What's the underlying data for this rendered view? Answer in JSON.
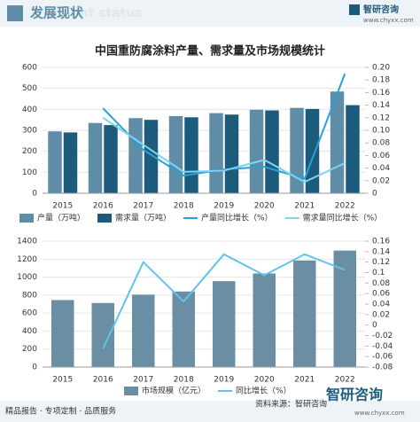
{
  "header": {
    "title": "发展现状",
    "watermark": "ent status",
    "logo": "智研咨询",
    "url": "www.chyxx.com"
  },
  "title": "中国重防腐涂料产量、需求量及市场规模统计",
  "chart_data": [
    {
      "type": "bar",
      "categories": [
        "2015",
        "2016",
        "2017",
        "2018",
        "2019",
        "2020",
        "2021",
        "2022"
      ],
      "ylim": [
        0,
        600
      ],
      "yticks": [
        0,
        100,
        200,
        300,
        400,
        500,
        600
      ],
      "y2lim": [
        0,
        0.2
      ],
      "y2ticks": [
        0,
        0.02,
        0.04,
        0.06,
        0.08,
        {
          "value": 0.1,
          "label": "0.10"
        },
        0.12,
        0.14,
        0.16,
        0.18,
        {
          "value": 0.2,
          "label": "0.20"
        }
      ],
      "series": [
        {
          "name": "产量（万吨）",
          "color": "#5f8ca6",
          "values": [
            295,
            335,
            358,
            368,
            382,
            398,
            407,
            485
          ]
        },
        {
          "name": "需求量（万吨）",
          "color": "#1d5b7c",
          "values": [
            290,
            325,
            350,
            362,
            375,
            395,
            402,
            420
          ]
        },
        {
          "name": "产量同比增长（%）",
          "type": "line",
          "axis": "y2",
          "color": "#2a9fd8",
          "values": [
            null,
            0.135,
            0.069,
            0.028,
            0.038,
            0.042,
            0.023,
            0.19
          ]
        },
        {
          "name": "需求量同比增长（%）",
          "type": "line",
          "axis": "y2",
          "color": "#7fd4f1",
          "values": [
            null,
            0.12,
            0.077,
            0.034,
            0.036,
            0.053,
            0.018,
            0.048
          ]
        }
      ]
    },
    {
      "type": "bar",
      "categories": [
        "2015",
        "2016",
        "2017",
        "2018",
        "2019",
        "2020",
        "2021",
        "2022"
      ],
      "ylim": [
        0,
        1400
      ],
      "yticks": [
        0,
        200,
        400,
        600,
        800,
        1000,
        1200,
        1400
      ],
      "y2lim": [
        -0.08,
        0.16
      ],
      "y2ticks": [
        -0.08,
        -0.06,
        -0.04,
        -0.02,
        0,
        0.02,
        0.04,
        0.06,
        0.08,
        0.1,
        0.12,
        0.14,
        0.16
      ],
      "series": [
        {
          "name": "市场规模（亿元）",
          "color": "#6a8ea3",
          "values": [
            745,
            712,
            805,
            840,
            955,
            1040,
            1185,
            1295
          ]
        },
        {
          "name": "同比增长（%）",
          "type": "line",
          "axis": "y2",
          "color": "#5fc4ea",
          "values": [
            null,
            -0.045,
            0.12,
            0.045,
            0.135,
            0.095,
            0.135,
            0.105
          ]
        }
      ]
    }
  ],
  "footer": {
    "left": "精品报告 · 专项定制 · 品质服务",
    "source": "资料来源：智研咨询",
    "logo": "智研咨询",
    "url": "www.chyxx.com"
  }
}
